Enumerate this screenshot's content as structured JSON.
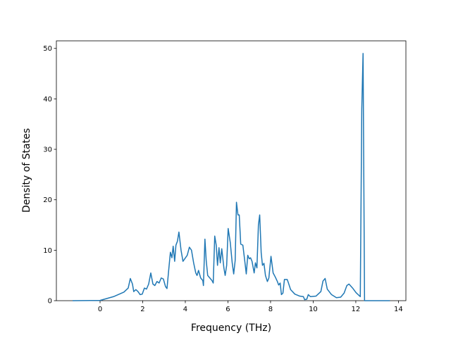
{
  "chart_data": {
    "type": "line",
    "x_label": "Frequency (THz)",
    "y_label": "Density of States",
    "x": [
      -1.29,
      0,
      0.63,
      1.12,
      1.32,
      1.42,
      1.52,
      1.58,
      1.68,
      1.78,
      1.88,
      1.98,
      2.08,
      2.18,
      2.28,
      2.38,
      2.48,
      2.57,
      2.67,
      2.77,
      2.87,
      2.97,
      3.07,
      3.14,
      3.23,
      3.3,
      3.37,
      3.43,
      3.5,
      3.56,
      3.63,
      3.7,
      3.8,
      3.89,
      3.99,
      4.09,
      4.19,
      4.29,
      4.39,
      4.49,
      4.55,
      4.62,
      4.72,
      4.82,
      4.85,
      4.92,
      4.98,
      5.05,
      5.15,
      5.25,
      5.31,
      5.38,
      5.45,
      5.51,
      5.58,
      5.64,
      5.71,
      5.81,
      5.87,
      5.94,
      6.01,
      6.11,
      6.2,
      6.27,
      6.34,
      6.4,
      6.47,
      6.53,
      6.6,
      6.7,
      6.8,
      6.86,
      6.93,
      7.0,
      7.06,
      7.13,
      7.23,
      7.29,
      7.36,
      7.43,
      7.49,
      7.56,
      7.62,
      7.69,
      7.76,
      7.85,
      7.92,
      8.02,
      8.12,
      8.22,
      8.32,
      8.38,
      8.45,
      8.51,
      8.58,
      8.65,
      8.78,
      8.84,
      8.94,
      9.14,
      9.37,
      9.54,
      9.6,
      9.7,
      9.77,
      9.87,
      10.13,
      10.36,
      10.46,
      10.56,
      10.66,
      10.86,
      11.09,
      11.29,
      11.45,
      11.58,
      11.68,
      11.85,
      12.01,
      12.21,
      12.28,
      12.34,
      12.41,
      13.6
    ],
    "series": [
      {
        "color": "#1f77b4",
        "values": [
          0,
          0.05,
          0.8,
          1.7,
          2.5,
          4.4,
          3.3,
          1.8,
          2.2,
          1.8,
          1.2,
          1.3,
          2.5,
          2.3,
          3.3,
          5.5,
          3.3,
          3.0,
          3.8,
          3.5,
          4.5,
          4.3,
          2.8,
          2.4,
          6.5,
          9.6,
          8.5,
          10.8,
          7.8,
          11,
          11.8,
          13.6,
          10,
          7.8,
          8.4,
          9,
          10.6,
          10,
          7.5,
          5.5,
          5,
          6,
          4.5,
          4,
          3,
          12.2,
          8,
          5,
          4.5,
          4.0,
          3.5,
          12.8,
          11,
          7,
          10.5,
          7.5,
          10.3,
          6.5,
          5,
          7,
          14.3,
          11.5,
          7.5,
          5.3,
          8,
          19.5,
          17,
          17,
          11.2,
          11,
          7.5,
          5.3,
          9,
          8.3,
          8.5,
          7.8,
          5.5,
          7.5,
          6.5,
          15,
          17,
          9.5,
          7,
          7.4,
          5,
          3.8,
          4.5,
          8.8,
          5.5,
          4.7,
          3.8,
          3.1,
          3.5,
          1.2,
          1.5,
          4.2,
          4.2,
          3.5,
          2.2,
          1.3,
          0.9,
          0.8,
          0.2,
          0.3,
          1.2,
          0.8,
          0.9,
          1.8,
          3.9,
          4.4,
          2.3,
          1.2,
          0.6,
          0.7,
          1.5,
          3.0,
          3.3,
          2.5,
          1.6,
          0.8,
          38,
          49,
          0,
          0
        ]
      }
    ],
    "xlim": [
      -2.05,
      14.35
    ],
    "ylim": [
      0,
      51.5
    ],
    "xticks": [
      0,
      2,
      4,
      6,
      8,
      10,
      12,
      14
    ],
    "yticks": [
      0,
      10,
      20,
      30,
      40,
      50
    ]
  }
}
